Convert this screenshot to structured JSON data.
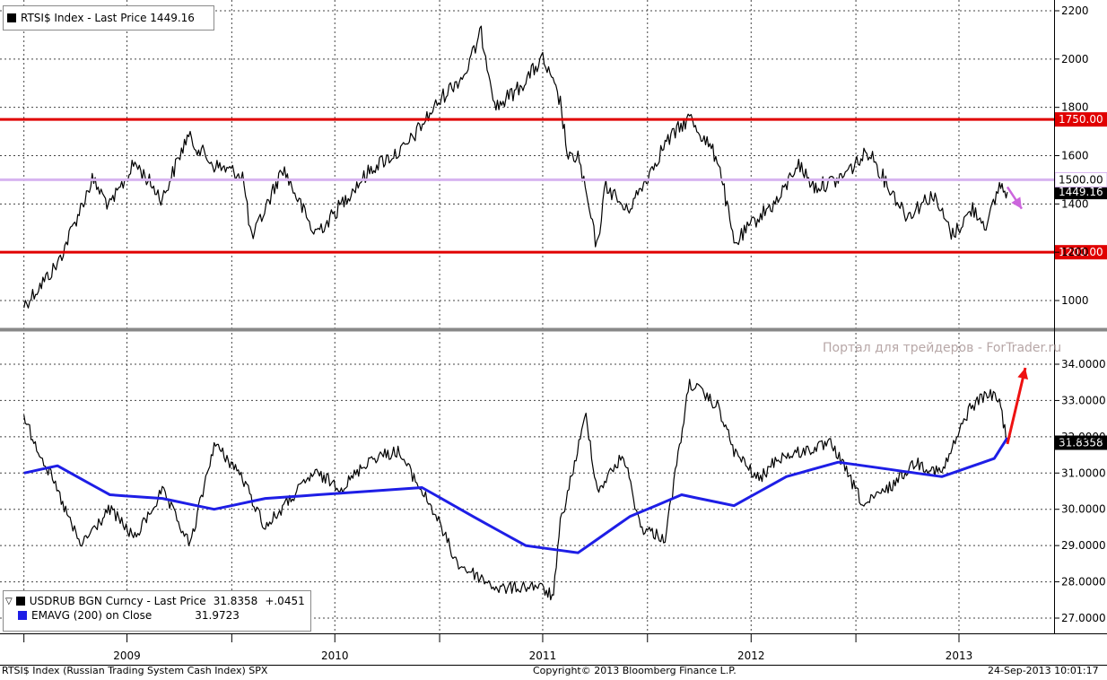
{
  "colors": {
    "price_line": "#000000",
    "ema_line": "#1e1ee6",
    "horizontal_level": "#e00000",
    "level_1500": "#d7b4f0",
    "arrow_down": "#cc66dd",
    "arrow_up": "#ee1111",
    "grid": "#444444",
    "separator": "#888888"
  },
  "top_legend": {
    "label": "RTSI$ Index - Last Price 1449.16"
  },
  "bottom_legend": {
    "row1": {
      "label": "USDRUB BGN Curncy - Last Price",
      "value": "31.8358",
      "change": "+.0451"
    },
    "row2": {
      "label": "EMAVG (200) on Close",
      "value": "31.9723"
    }
  },
  "watermark": "Портал для трейдеров - ForTrader.ru",
  "footer": {
    "left": "RTSI$ Index (Russian Trading System Cash Index) SPX",
    "center": "Copyright© 2013 Bloomberg Finance L.P.",
    "right": "24-Sep-2013 10:01:17"
  },
  "chart_data": [
    {
      "type": "line",
      "series": [
        {
          "name": "RTSI$ Index - Last Price",
          "x": [
            "2009-01-01",
            "2009-03-01",
            "2009-05-01",
            "2009-06-01",
            "2009-07-15",
            "2009-09-01",
            "2009-10-15",
            "2009-12-01",
            "2010-01-20",
            "2010-02-05",
            "2010-04-01",
            "2010-05-25",
            "2010-06-20",
            "2010-08-01",
            "2010-09-10",
            "2010-11-01",
            "2010-12-20",
            "2011-01-15",
            "2011-02-15",
            "2011-03-15",
            "2011-04-10",
            "2011-05-20",
            "2011-07-01",
            "2011-08-01",
            "2011-08-15",
            "2011-09-01",
            "2011-10-04",
            "2011-10-20",
            "2011-11-25",
            "2011-12-15",
            "2012-02-01",
            "2012-03-15",
            "2012-05-05",
            "2012-06-01",
            "2012-07-15",
            "2012-08-20",
            "2012-09-20",
            "2012-10-20",
            "2012-12-01",
            "2013-01-25",
            "2013-02-20",
            "2013-04-01",
            "2013-05-15",
            "2013-06-20",
            "2013-07-25",
            "2013-08-20",
            "2013-09-10",
            "2013-09-24"
          ],
          "y": [
            980,
            1150,
            1500,
            1390,
            1570,
            1420,
            1680,
            1560,
            1520,
            1250,
            1550,
            1280,
            1330,
            1460,
            1560,
            1630,
            1790,
            1870,
            1940,
            2110,
            1800,
            1880,
            2000,
            1820,
            1580,
            1600,
            1220,
            1480,
            1370,
            1440,
            1650,
            1760,
            1580,
            1230,
            1350,
            1420,
            1570,
            1470,
            1500,
            1620,
            1500,
            1350,
            1440,
            1270,
            1380,
            1310,
            1480,
            1449.16
          ]
        }
      ],
      "reference_lines": [
        1750,
        1500,
        1200
      ],
      "reference_labels": [
        "1750.00",
        "1500.00",
        "1200.00"
      ],
      "last_label": "1449.16",
      "ylim": [
        900,
        2220
      ],
      "yticks": [
        1000,
        1200,
        1400,
        1600,
        1800,
        2000,
        2200
      ],
      "ytick_labels": [
        "1000",
        "1200",
        "1400",
        "1600",
        "1800",
        "2000",
        "2200"
      ],
      "grid": true,
      "y_axis_side": "right"
    },
    {
      "type": "line",
      "series": [
        {
          "name": "USDRUB BGN Curncy - Last Price",
          "x": [
            "2009-01-01",
            "2009-02-15",
            "2009-04-10",
            "2009-06-01",
            "2009-07-15",
            "2009-09-01",
            "2009-10-20",
            "2009-12-01",
            "2010-01-15",
            "2010-03-01",
            "2010-05-25",
            "2010-07-15",
            "2010-09-01",
            "2010-10-20",
            "2010-12-20",
            "2011-02-01",
            "2011-04-15",
            "2011-06-20",
            "2011-07-20",
            "2011-08-01",
            "2011-09-15",
            "2011-10-05",
            "2011-11-20",
            "2011-12-20",
            "2012-02-01",
            "2012-03-15",
            "2012-05-05",
            "2012-06-01",
            "2012-07-15",
            "2012-08-15",
            "2012-10-01",
            "2012-11-20",
            "2013-01-15",
            "2013-03-01",
            "2013-04-15",
            "2013-06-01",
            "2013-07-20",
            "2013-08-20",
            "2013-09-10",
            "2013-09-24"
          ],
          "y": [
            32.5,
            31.0,
            29.0,
            30.0,
            29.2,
            30.5,
            29.0,
            31.8,
            31.0,
            29.5,
            31.0,
            30.6,
            31.4,
            31.6,
            30.0,
            28.5,
            27.8,
            27.9,
            27.6,
            29.6,
            32.6,
            30.5,
            31.5,
            29.5,
            29.2,
            33.5,
            32.8,
            31.6,
            30.8,
            31.4,
            31.6,
            31.8,
            30.1,
            30.6,
            31.3,
            31.0,
            32.8,
            33.2,
            33.0,
            31.8358
          ]
        },
        {
          "name": "EMAVG (200) on Close",
          "x": [
            "2009-01-01",
            "2009-03-01",
            "2009-06-01",
            "2009-09-01",
            "2009-12-01",
            "2010-03-01",
            "2010-06-01",
            "2010-09-01",
            "2010-12-01",
            "2011-03-01",
            "2011-06-01",
            "2011-09-01",
            "2011-12-01",
            "2012-03-01",
            "2012-06-01",
            "2012-09-01",
            "2012-12-01",
            "2013-03-01",
            "2013-06-01",
            "2013-09-01",
            "2013-09-24"
          ],
          "y": [
            31.0,
            31.2,
            30.4,
            30.3,
            30.0,
            30.3,
            30.4,
            30.5,
            30.6,
            29.8,
            29.0,
            28.8,
            29.8,
            30.4,
            30.1,
            30.9,
            31.3,
            31.1,
            30.9,
            31.4,
            31.9723
          ]
        }
      ],
      "last_label": "31.8358",
      "ylim": [
        26.6,
        34.3
      ],
      "yticks": [
        27,
        28,
        29,
        30,
        31,
        32,
        33,
        34
      ],
      "ytick_labels": [
        "27.0000",
        "28.0000",
        "29.0000",
        "30.0000",
        "31.0000",
        "32.0000",
        "33.0000",
        "34.0000"
      ],
      "grid": true,
      "y_axis_side": "right"
    }
  ],
  "x_axis": {
    "tick_labels": [
      "2009",
      "2010",
      "2011",
      "2012",
      "2013"
    ]
  }
}
